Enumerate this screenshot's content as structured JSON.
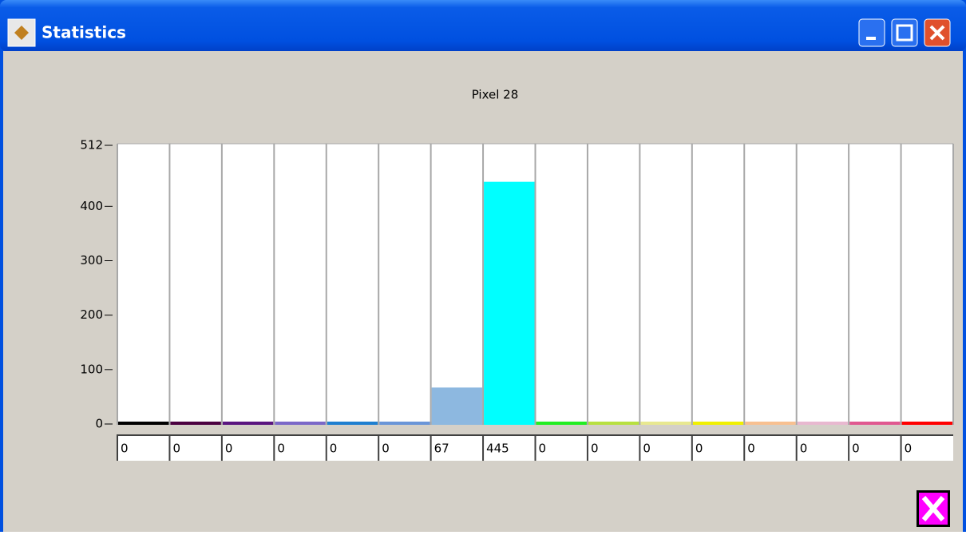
{
  "window_title": "Statistics",
  "chart_data": {
    "type": "bar",
    "title": "Pixel 28",
    "values": [
      0,
      0,
      0,
      0,
      0,
      0,
      67,
      445,
      0,
      0,
      0,
      0,
      0,
      0,
      0,
      0
    ],
    "colors": [
      "#000000",
      "#4b0040",
      "#5a1580",
      "#7b68c8",
      "#1e7fd0",
      "#6a95d8",
      "#8db8e0",
      "#00ffff",
      "#22ee22",
      "#b8e040",
      "#e8e890",
      "#f0f000",
      "#f8c090",
      "#e8b8d0",
      "#e05890",
      "#ff0000"
    ],
    "ylim": [
      0,
      512
    ],
    "yticks": [
      0,
      100,
      200,
      300,
      400,
      512
    ]
  }
}
